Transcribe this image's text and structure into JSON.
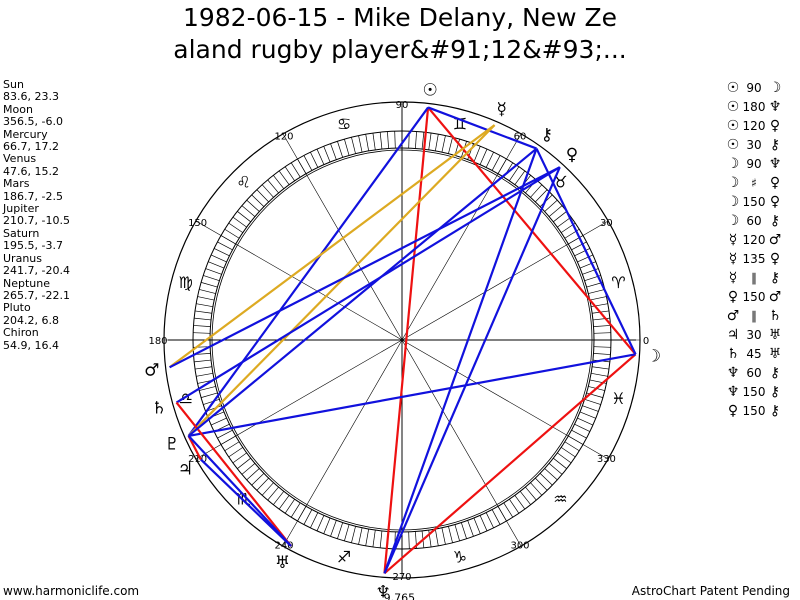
{
  "title_line1": "1982-06-15 - Mike Delany, New Ze",
  "title_line2": "aland rugby player&#91;12&#93;...",
  "planets": [
    {
      "name": "Sun",
      "glyph": "☉",
      "coords": "83.6, 23.3",
      "longitude": 83.6
    },
    {
      "name": "Moon",
      "glyph": "☽",
      "coords": "356.5, -6.0",
      "longitude": 356.5
    },
    {
      "name": "Mercury",
      "glyph": "☿",
      "coords": "66.7, 17.2",
      "longitude": 66.7
    },
    {
      "name": "Venus",
      "glyph": "♀",
      "coords": "47.6, 15.2",
      "longitude": 47.6
    },
    {
      "name": "Mars",
      "glyph": "♂",
      "coords": "186.7, -2.5",
      "longitude": 186.7
    },
    {
      "name": "Jupiter",
      "glyph": "♃",
      "coords": "210.7, -10.5",
      "longitude": 210.7
    },
    {
      "name": "Saturn",
      "glyph": "♄",
      "coords": "195.5, -3.7",
      "longitude": 195.5
    },
    {
      "name": "Uranus",
      "glyph": "♅",
      "coords": "241.7, -20.4",
      "longitude": 241.7
    },
    {
      "name": "Neptune",
      "glyph": "♆",
      "coords": "265.7, -22.1",
      "longitude": 265.7
    },
    {
      "name": "Pluto",
      "glyph": "♇",
      "coords": "204.2, 6.8",
      "longitude": 204.2
    },
    {
      "name": "Chiron",
      "glyph": "⚷",
      "coords": "54.9, 16.4",
      "longitude": 54.9
    }
  ],
  "aspects": [
    {
      "p1": "☉",
      "angle": "90",
      "p2": "☽"
    },
    {
      "p1": "☉",
      "angle": "180",
      "p2": "♆"
    },
    {
      "p1": "☉",
      "angle": "120",
      "p2": "♀"
    },
    {
      "p1": "☉",
      "angle": "30",
      "p2": "⚷"
    },
    {
      "p1": "☽",
      "angle": "90",
      "p2": "♆"
    },
    {
      "p1": "☽",
      "angle": "♯",
      "p2": "♀"
    },
    {
      "p1": "☽",
      "angle": "150",
      "p2": "♀"
    },
    {
      "p1": "☽",
      "angle": "60",
      "p2": "⚷"
    },
    {
      "p1": "☿",
      "angle": "120",
      "p2": "♂"
    },
    {
      "p1": "☿",
      "angle": "135",
      "p2": "♀"
    },
    {
      "p1": "☿",
      "angle": "∥",
      "p2": "⚷"
    },
    {
      "p1": "♀",
      "angle": "150",
      "p2": "♂"
    },
    {
      "p1": "♂",
      "angle": "∥",
      "p2": "♄"
    },
    {
      "p1": "♃",
      "angle": "30",
      "p2": "♅"
    },
    {
      "p1": "♄",
      "angle": "45",
      "p2": "♅"
    },
    {
      "p1": "♆",
      "angle": "60",
      "p2": "⚷"
    },
    {
      "p1": "♆",
      "angle": "150",
      "p2": "⚷"
    },
    {
      "p1": "♀",
      "angle": "150",
      "p2": "⚷"
    }
  ],
  "wheel": {
    "degree_labels": [
      "90",
      "60",
      "30",
      "0",
      "330",
      "300",
      "270",
      "240",
      "210",
      "180",
      "150",
      "120"
    ],
    "zodiac_glyphs": [
      "♈",
      "♉",
      "♊",
      "♋",
      "♌",
      "♍",
      "♎",
      "♏",
      "♐",
      "♑",
      "♒",
      "♓"
    ],
    "bottom_label": "9,765",
    "aspect_lines": [
      {
        "a": "Sun",
        "b": "Moon",
        "color": "#ee1111"
      },
      {
        "a": "Sun",
        "b": "Neptune",
        "color": "#ee1111"
      },
      {
        "a": "Sun",
        "b": "Pluto",
        "color": "#1111dd"
      },
      {
        "a": "Sun",
        "b": "Chiron",
        "color": "#1111dd"
      },
      {
        "a": "Moon",
        "b": "Neptune",
        "color": "#ee1111"
      },
      {
        "a": "Moon",
        "b": "Pluto",
        "color": "#1111dd"
      },
      {
        "a": "Moon",
        "b": "Chiron",
        "color": "#1111dd"
      },
      {
        "a": "Mercury",
        "b": "Mars",
        "color": "#ddaa22"
      },
      {
        "a": "Mercury",
        "b": "Pluto",
        "color": "#ddaa22"
      },
      {
        "a": "Venus",
        "b": "Mars",
        "color": "#1111dd"
      },
      {
        "a": "Venus",
        "b": "Saturn",
        "color": "#1111dd"
      },
      {
        "a": "Venus",
        "b": "Neptune",
        "color": "#1111dd"
      },
      {
        "a": "Jupiter",
        "b": "Uranus",
        "color": "#1111dd"
      },
      {
        "a": "Jupiter",
        "b": "Pluto",
        "color": "#ee1111"
      },
      {
        "a": "Saturn",
        "b": "Uranus",
        "color": "#ee1111"
      },
      {
        "a": "Neptune",
        "b": "Chiron",
        "color": "#1111dd"
      },
      {
        "a": "Pluto",
        "b": "Chiron",
        "color": "#1111dd"
      },
      {
        "a": "Pluto",
        "b": "Uranus",
        "color": "#1111dd"
      }
    ]
  },
  "footer_left": "www.harmoniclife.com",
  "footer_right": "AstroChart Patent Pending",
  "colors": {
    "red": "#ee1111",
    "blue": "#1111dd",
    "gold": "#ddaa22"
  }
}
